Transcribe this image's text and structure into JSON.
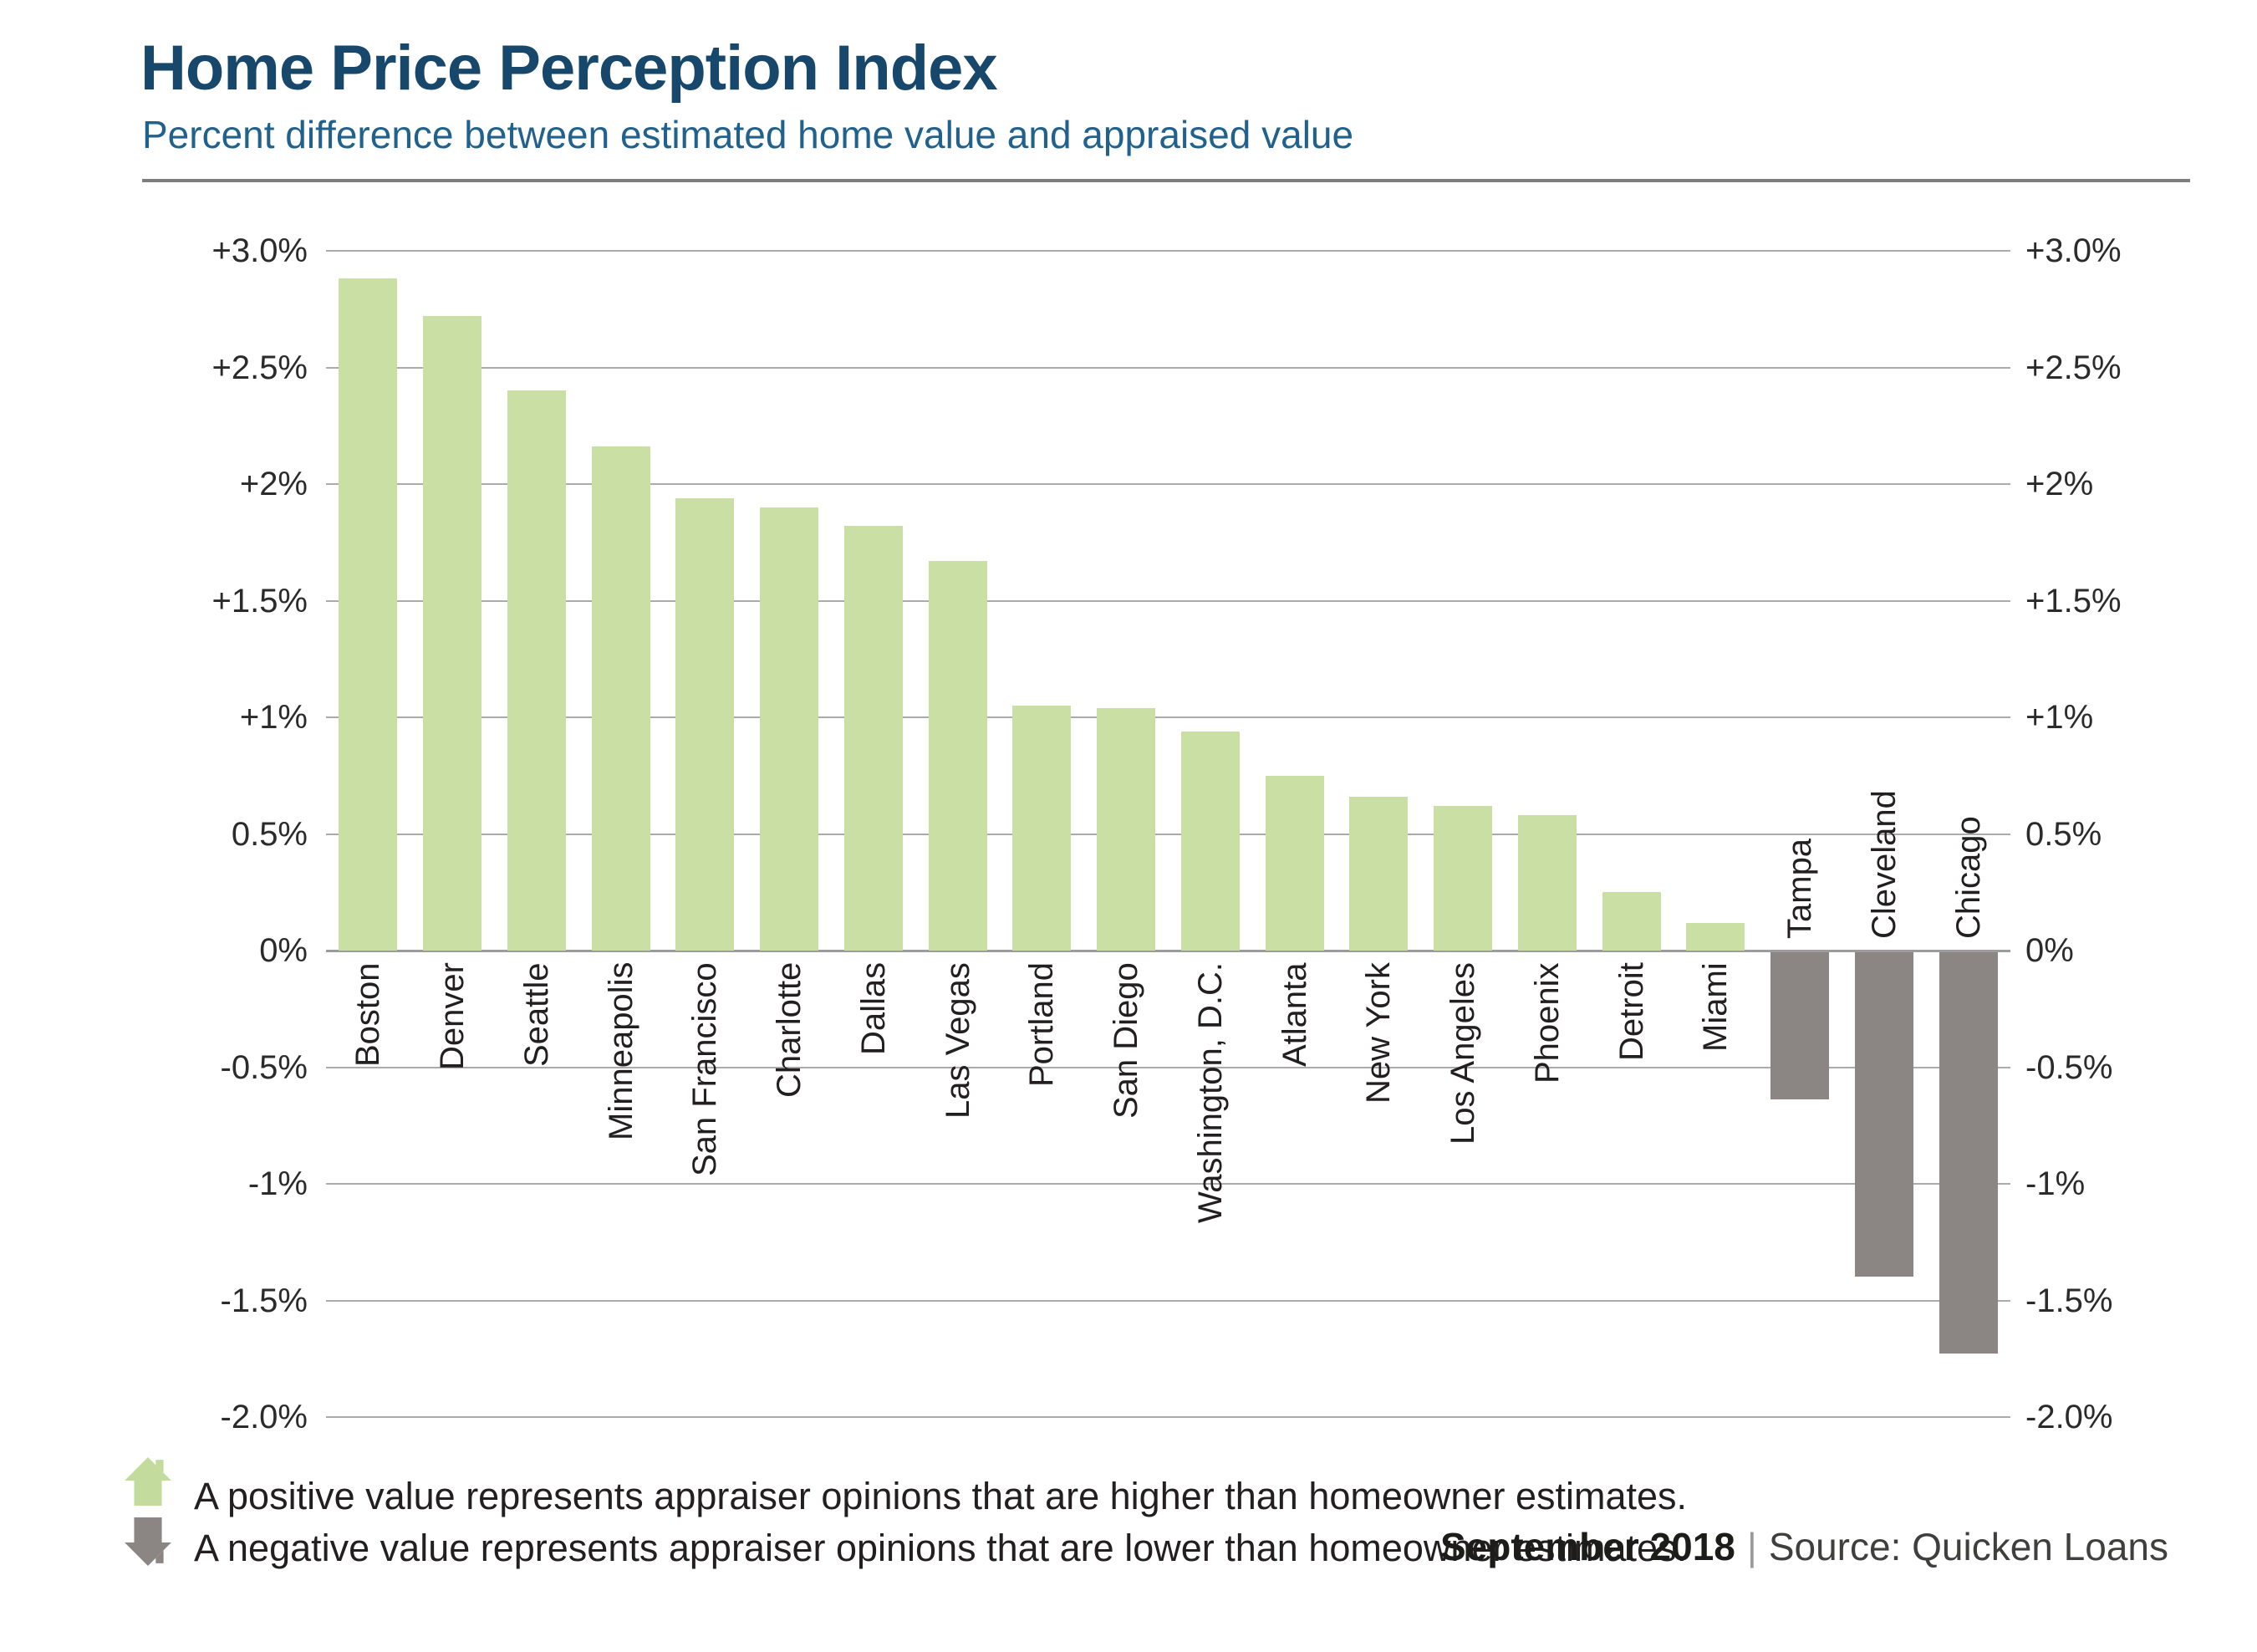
{
  "chart_data": {
    "type": "bar",
    "title": "Home Price Perception Index",
    "subtitle": "Percent difference between estimated home value and appraised value",
    "categories": [
      "Boston",
      "Denver",
      "Seattle",
      "Minneapolis",
      "San Francisco",
      "Charlotte",
      "Dallas",
      "Las Vegas",
      "Portland",
      "San Diego",
      "Washington, D.C.",
      "Atlanta",
      "New York",
      "Los Angeles",
      "Phoenix",
      "Detroit",
      "Miami",
      "Tampa",
      "Cleveland",
      "Chicago"
    ],
    "values": [
      2.88,
      2.72,
      2.4,
      2.16,
      1.94,
      1.9,
      1.82,
      1.67,
      1.05,
      1.04,
      0.94,
      0.75,
      0.66,
      0.62,
      0.58,
      0.25,
      0.12,
      -0.63,
      -1.39,
      -1.72
    ],
    "xlabel": "",
    "ylabel": "",
    "ylim": [
      -2.0,
      3.0
    ],
    "grid": true,
    "yticks": [
      {
        "value": 3.0,
        "label": "+3.0%"
      },
      {
        "value": 2.5,
        "label": "+2.5%"
      },
      {
        "value": 2.0,
        "label": "+2%"
      },
      {
        "value": 1.5,
        "label": "+1.5%"
      },
      {
        "value": 1.0,
        "label": "+1%"
      },
      {
        "value": 0.5,
        "label": "0.5%"
      },
      {
        "value": 0.0,
        "label": "0%"
      },
      {
        "value": -0.5,
        "label": "-0.5%"
      },
      {
        "value": -1.0,
        "label": "-1%"
      },
      {
        "value": -1.5,
        "label": "-1.5%"
      },
      {
        "value": -2.0,
        "label": "-2.0%"
      }
    ],
    "positive_color": "#c9dfa4",
    "negative_color": "#8b8583",
    "gridline_color": "#ababab",
    "axis_line_color": "#9c9c9c",
    "title_color": "#17476b",
    "subtitle_color": "#21618d",
    "legend_position": "bottom"
  },
  "legend": {
    "items": [
      {
        "icon": "house-up-icon",
        "color": "#c3dc9e",
        "text": "A positive value represents appraiser opinions that are higher than homeowner estimates."
      },
      {
        "icon": "house-down-icon",
        "color": "#8b8583",
        "text": "A negative value represents appraiser opinions that are lower than homeowner estimates."
      }
    ]
  },
  "footer": {
    "date": "September 2018",
    "separator": "|",
    "source": "Source: Quicken Loans"
  }
}
